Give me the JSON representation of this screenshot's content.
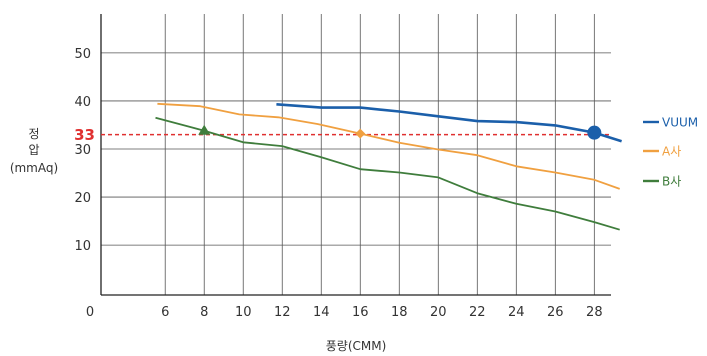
{
  "chart_data": {
    "type": "line",
    "xlabel": "풍량(CMM)",
    "ylabel_lines": [
      "정",
      "압",
      "(mmAq)"
    ],
    "x_origin_label": "0",
    "x_ticks": [
      6,
      8,
      10,
      12,
      14,
      16,
      18,
      20,
      22,
      24,
      26,
      28
    ],
    "y_ticks": [
      10,
      20,
      30,
      40,
      50
    ],
    "xlim": [
      3,
      30
    ],
    "ylim": [
      0,
      60
    ],
    "grid": true,
    "legend_position": "right",
    "reference_line": {
      "value": 33,
      "label": "33",
      "color": "#e03030"
    },
    "series": [
      {
        "name": "VUUM",
        "color": "#1b5faa",
        "x": [
          11.7,
          14,
          16,
          18,
          20,
          22,
          24,
          26,
          28,
          29.4
        ],
        "y": [
          39.3,
          38.6,
          38.6,
          37.8,
          36.8,
          35.8,
          35.6,
          34.9,
          33.4,
          31.6
        ],
        "marker": {
          "x": 28,
          "y": 33.4,
          "shape": "circle"
        }
      },
      {
        "name": "A사",
        "color": "#f0a040",
        "x": [
          5.6,
          7.8,
          9.8,
          11.8,
          13.8,
          16,
          18,
          20,
          22,
          24,
          26,
          28,
          29.3
        ],
        "y": [
          39.4,
          38.9,
          37.2,
          36.6,
          35.2,
          33.2,
          31.3,
          29.9,
          28.7,
          26.4,
          25.1,
          23.6,
          21.7
        ],
        "marker": {
          "x": 16,
          "y": 33.2,
          "shape": "diamond"
        }
      },
      {
        "name": "B사",
        "color": "#3f7d3c",
        "x": [
          5.5,
          8,
          10,
          12,
          14,
          16,
          18,
          20,
          22,
          24,
          26,
          28,
          29.3
        ],
        "y": [
          36.5,
          33.8,
          31.4,
          30.6,
          28.3,
          25.8,
          25.1,
          24.1,
          20.8,
          18.6,
          17.0,
          14.8,
          13.2
        ],
        "marker": {
          "x": 8,
          "y": 33.8,
          "shape": "triangle"
        }
      }
    ]
  }
}
